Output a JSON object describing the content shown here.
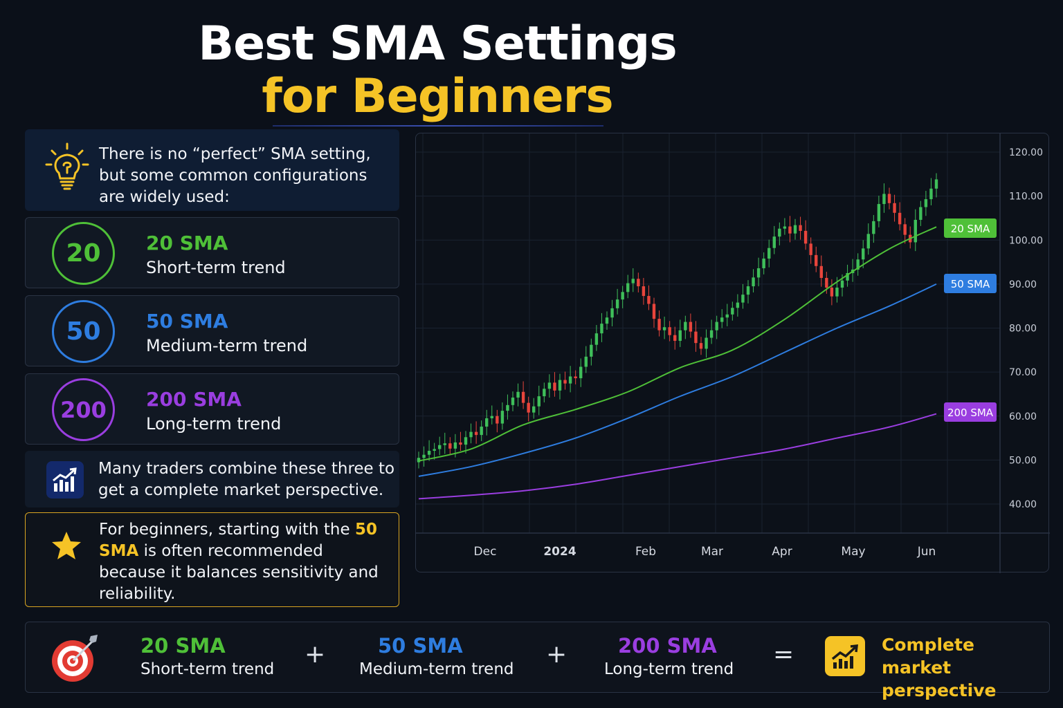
{
  "title": {
    "line1": "Best SMA Settings",
    "line2": "for Beginners"
  },
  "intro": {
    "icon": "lightbulb-icon",
    "text": "There is no “perfect” SMA setting, but some common configurations are widely used:"
  },
  "cards": [
    {
      "number": "20",
      "name": "20 SMA",
      "desc": "Short-term trend",
      "color": "#4fc038"
    },
    {
      "number": "50",
      "name": "50 SMA",
      "desc": "Medium-term trend",
      "color": "#2e7de0"
    },
    {
      "number": "200",
      "name": "200 SMA",
      "desc": "Long-term trend",
      "color": "#9a3ee0"
    }
  ],
  "combine": {
    "icon": "bar-chart-growth-icon",
    "text": "Many traders combine these three to get a complete market perspective."
  },
  "beginner": {
    "icon": "star-icon",
    "pre": "For beginners, starting with the",
    "highlight": "50 SMA",
    "post": "is often recommended because it balances sensitivity and reliability."
  },
  "chart_data": {
    "type": "line",
    "subtype": "candlestick-with-moving-averages",
    "x_labels": [
      "Dec",
      "2024",
      "Feb",
      "Mar",
      "Apr",
      "May",
      "Jun"
    ],
    "y_ticks": [
      "120.00",
      "110.00",
      "100.00",
      "90.00",
      "80.00",
      "70.00",
      "60.00",
      "50.00",
      "40.00"
    ],
    "ylim": [
      36,
      122
    ],
    "grid": true,
    "axis_position": "right",
    "n_periods": 100,
    "series": [
      {
        "name": "20 SMA",
        "color": "#4fc038",
        "x": [
          0,
          10,
          20,
          30,
          40,
          50,
          60,
          70,
          80,
          90,
          99
        ],
        "values": [
          49.8,
          52.5,
          58,
          61.5,
          65.5,
          71,
          75,
          82,
          90.5,
          98,
          103
        ]
      },
      {
        "name": "50 SMA",
        "color": "#2e7de0",
        "x": [
          0,
          10,
          20,
          30,
          40,
          50,
          60,
          70,
          80,
          90,
          99
        ],
        "values": [
          46.3,
          48.5,
          51.5,
          55,
          59.5,
          64.5,
          69,
          74.5,
          80,
          85,
          90
        ]
      },
      {
        "name": "200 SMA",
        "color": "#9a3ee0",
        "x": [
          0,
          10,
          20,
          30,
          40,
          50,
          60,
          70,
          80,
          90,
          99
        ],
        "values": [
          41.2,
          42,
          43,
          44.5,
          46.5,
          48.5,
          50.5,
          52.5,
          55,
          57.5,
          60.5
        ]
      }
    ],
    "candles": {
      "close": [
        50.5,
        51.2,
        52.1,
        52.5,
        53.4,
        53.8,
        52.6,
        54,
        53.5,
        55.2,
        56.4,
        55.7,
        57.6,
        59.5,
        60,
        58.3,
        61.2,
        62.5,
        64.2,
        65.5,
        63,
        60.8,
        62.2,
        64.5,
        66.2,
        67.6,
        65.8,
        68.2,
        67.4,
        69,
        68.6,
        71.2,
        73.5,
        76.2,
        78.8,
        81,
        82.4,
        84.5,
        86.5,
        88.2,
        90.2,
        91.2,
        89.5,
        87.3,
        85.5,
        82.1,
        79.5,
        80.2,
        78.4,
        77.1,
        79.5,
        81.4,
        79.2,
        76.6,
        75.3,
        77.8,
        79.5,
        81.4,
        82.4,
        83.1,
        84.6,
        85.8,
        87.6,
        89.5,
        91.5,
        93.6,
        95.8,
        98.2,
        100.8,
        102.6,
        103.1,
        101.5,
        103.4,
        102.1,
        99.2,
        96.6,
        94.1,
        91.4,
        89.2,
        87.2,
        89.2,
        90.8,
        92.5,
        93.3,
        95.6,
        98.1,
        101.4,
        104.3,
        108.2,
        110.5,
        108.4,
        106.2,
        103.6,
        101.2,
        99.5,
        104.6,
        107.5,
        109.3,
        111.7,
        113.8
      ],
      "up_color": "#3fbf5a",
      "down_color": "#e8453c"
    },
    "labels": [
      {
        "text": "20 SMA",
        "color": "#4fc038"
      },
      {
        "text": "50 SMA",
        "color": "#2e7de0"
      },
      {
        "text": "200 SMA",
        "color": "#9a3ee0"
      }
    ]
  },
  "bottom": {
    "icon": "target-icon",
    "items": [
      {
        "name": "20 SMA",
        "desc": "Short-term trend",
        "color": "#4fc038"
      },
      {
        "name": "50 SMA",
        "desc": "Medium-term trend",
        "color": "#2e7de0"
      },
      {
        "name": "200 SMA",
        "desc": "Long-term trend",
        "color": "#9a3ee0"
      }
    ],
    "plus": "+",
    "equals": "=",
    "result_icon": "trending-chart-icon",
    "result": "Complete market perspective"
  }
}
